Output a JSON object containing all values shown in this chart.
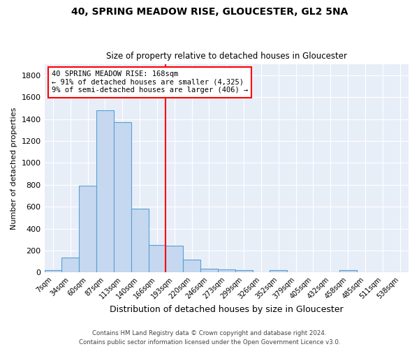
{
  "title1": "40, SPRING MEADOW RISE, GLOUCESTER, GL2 5NA",
  "title2": "Size of property relative to detached houses in Gloucester",
  "xlabel": "Distribution of detached houses by size in Gloucester",
  "ylabel": "Number of detached properties",
  "bar_color": "#c5d8f0",
  "bar_edge_color": "#5a9fd4",
  "bg_color": "#e8eef8",
  "grid_color": "white",
  "bin_labels": [
    "7sqm",
    "34sqm",
    "60sqm",
    "87sqm",
    "113sqm",
    "140sqm",
    "166sqm",
    "193sqm",
    "220sqm",
    "246sqm",
    "273sqm",
    "299sqm",
    "326sqm",
    "352sqm",
    "379sqm",
    "405sqm",
    "432sqm",
    "458sqm",
    "485sqm",
    "511sqm",
    "538sqm"
  ],
  "bin_values": [
    20,
    135,
    795,
    1480,
    1375,
    580,
    248,
    245,
    115,
    35,
    30,
    20,
    0,
    20,
    0,
    0,
    0,
    20,
    0,
    0,
    0
  ],
  "ylim": [
    0,
    1900
  ],
  "yticks": [
    0,
    200,
    400,
    600,
    800,
    1000,
    1200,
    1400,
    1600,
    1800
  ],
  "vline_index": 6.5,
  "annotation_text": "40 SPRING MEADOW RISE: 168sqm\n← 91% of detached houses are smaller (4,325)\n9% of semi-detached houses are larger (406) →",
  "annotation_box_color": "white",
  "annotation_edge_color": "red",
  "vline_color": "red",
  "footer1": "Contains HM Land Registry data © Crown copyright and database right 2024.",
  "footer2": "Contains public sector information licensed under the Open Government Licence v3.0."
}
